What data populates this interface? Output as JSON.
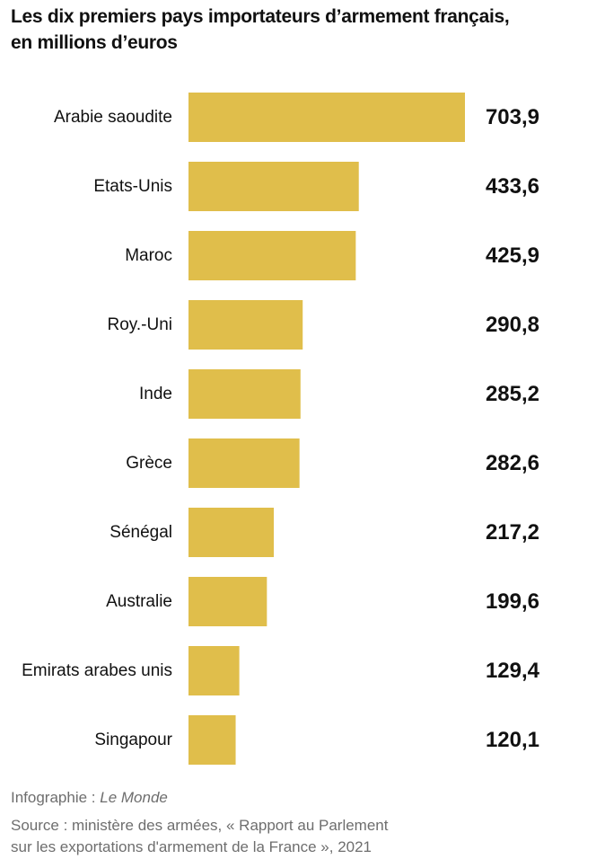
{
  "title": {
    "line1": "Les dix premiers pays importateurs d’armement français,",
    "line2": "en millions d’euros"
  },
  "credit": {
    "prefix": "Infographie : ",
    "brand": "Le Monde"
  },
  "source": {
    "line1": "Source : ministère des armées, « Rapport au Parlement",
    "line2": "sur les exportations d'armement de la France », 2021"
  },
  "colors": {
    "bar": "#e0be4b",
    "text": "#111111",
    "muted": "#6e6e6e"
  },
  "chart_data": {
    "type": "bar",
    "orientation": "horizontal",
    "title": "Les dix premiers pays importateurs d’armement français, en millions d’euros",
    "xlabel": "",
    "ylabel": "",
    "xlim": [
      0,
      703.9
    ],
    "grid": false,
    "legend": "none",
    "categories": [
      "Arabie saoudite",
      "Etats-Unis",
      "Maroc",
      "Roy.-Uni",
      "Inde",
      "Grèce",
      "Sénégal",
      "Australie",
      "Emirats arabes unis",
      "Singapour"
    ],
    "values": [
      703.9,
      433.6,
      425.9,
      290.8,
      285.2,
      282.6,
      217.2,
      199.6,
      129.4,
      120.1
    ],
    "value_labels": [
      "703,9",
      "433,6",
      "425,9",
      "290,8",
      "285,2",
      "282,6",
      "217,2",
      "199,6",
      "129,4",
      "120,1"
    ]
  }
}
